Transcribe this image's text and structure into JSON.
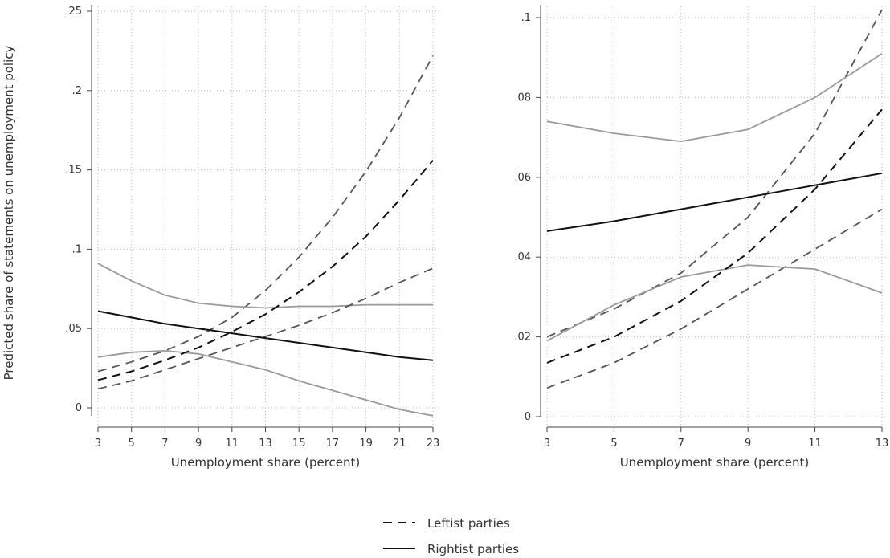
{
  "shared": {
    "ylabel": "Predicted share of statements on unemployment policy",
    "legend": [
      {
        "label": "Leftist parties",
        "style": "dashed"
      },
      {
        "label": "Rightist parties",
        "style": "solid"
      }
    ],
    "colors": {
      "estimate": "#111111",
      "ci_left": "#555555",
      "ci_right": "#9a9a9a",
      "grid": "#bdbdbd"
    }
  },
  "chart_data": [
    {
      "type": "line",
      "xlabel": "Unemployment share (percent)",
      "xlim": [
        3,
        23
      ],
      "ylim": [
        -0.005,
        0.25
      ],
      "xticks": [
        3,
        5,
        7,
        9,
        11,
        13,
        15,
        17,
        19,
        21,
        23
      ],
      "xtick_labels": [
        "3",
        "5",
        "7",
        "9",
        "11",
        "13",
        "15",
        "17",
        "19",
        "21",
        "23"
      ],
      "yticks": [
        0,
        0.05,
        0.1,
        0.15,
        0.2,
        0.25
      ],
      "ytick_labels": [
        "0",
        ".05",
        ".1",
        ".15",
        ".2",
        ".25"
      ],
      "grid": true,
      "x": [
        3,
        5,
        7,
        9,
        11,
        13,
        15,
        17,
        19,
        21,
        23
      ],
      "series": [
        {
          "group": "left",
          "role": "estimate",
          "values": [
            0.0175,
            0.023,
            0.03,
            0.038,
            0.048,
            0.059,
            0.073,
            0.089,
            0.108,
            0.131,
            0.156
          ]
        },
        {
          "group": "left",
          "role": "upper",
          "values": [
            0.023,
            0.029,
            0.036,
            0.045,
            0.057,
            0.074,
            0.095,
            0.12,
            0.149,
            0.183,
            0.222
          ]
        },
        {
          "group": "left",
          "role": "lower",
          "values": [
            0.012,
            0.017,
            0.024,
            0.031,
            0.038,
            0.045,
            0.052,
            0.06,
            0.069,
            0.079,
            0.088
          ]
        },
        {
          "group": "right",
          "role": "estimate",
          "values": [
            0.061,
            0.057,
            0.053,
            0.05,
            0.047,
            0.044,
            0.041,
            0.038,
            0.035,
            0.032,
            0.03
          ]
        },
        {
          "group": "right",
          "role": "upper",
          "values": [
            0.091,
            0.08,
            0.071,
            0.066,
            0.064,
            0.063,
            0.064,
            0.064,
            0.065,
            0.065,
            0.065
          ]
        },
        {
          "group": "right",
          "role": "lower",
          "values": [
            0.032,
            0.035,
            0.036,
            0.034,
            0.029,
            0.024,
            0.017,
            0.011,
            0.005,
            -0.001,
            -0.005
          ]
        }
      ]
    },
    {
      "type": "line",
      "xlabel": "Unemployment share (percent)",
      "xlim": [
        3,
        13
      ],
      "ylim": [
        0,
        0.1
      ],
      "xticks": [
        3,
        5,
        7,
        9,
        11,
        13
      ],
      "xtick_labels": [
        "3",
        "5",
        "7",
        "9",
        "11",
        "13"
      ],
      "yticks": [
        0,
        0.02,
        0.04,
        0.06,
        0.08,
        0.1
      ],
      "ytick_labels": [
        "0",
        ".02",
        ".04",
        ".06",
        ".08",
        ".1"
      ],
      "grid": true,
      "x": [
        3,
        5,
        7,
        9,
        11,
        13
      ],
      "series": [
        {
          "group": "left",
          "role": "estimate",
          "values": [
            0.0135,
            0.02,
            0.029,
            0.041,
            0.057,
            0.077
          ]
        },
        {
          "group": "left",
          "role": "upper",
          "values": [
            0.02,
            0.027,
            0.036,
            0.05,
            0.071,
            0.102
          ]
        },
        {
          "group": "left",
          "role": "lower",
          "values": [
            0.0072,
            0.0135,
            0.022,
            0.032,
            0.042,
            0.052
          ]
        },
        {
          "group": "right",
          "role": "estimate",
          "values": [
            0.0465,
            0.049,
            0.052,
            0.055,
            0.058,
            0.061
          ]
        },
        {
          "group": "right",
          "role": "upper",
          "values": [
            0.074,
            0.071,
            0.069,
            0.072,
            0.08,
            0.091
          ]
        },
        {
          "group": "right",
          "role": "lower",
          "values": [
            0.019,
            0.028,
            0.035,
            0.038,
            0.037,
            0.031
          ]
        }
      ]
    }
  ]
}
